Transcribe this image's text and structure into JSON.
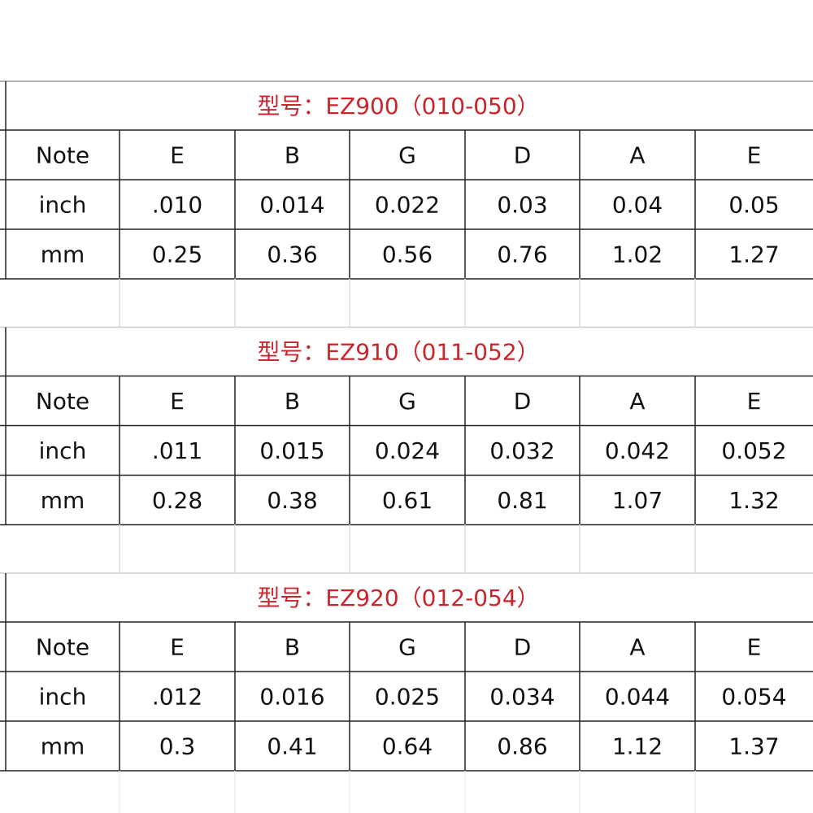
{
  "tables": [
    {
      "title": "型号：EZ900（010-050）",
      "rows": [
        [
          "Note",
          "E",
          "B",
          "G",
          "D",
          "A",
          "E"
        ],
        [
          "inch",
          ".010",
          "0.014",
          "0.022",
          "0.03",
          "0.04",
          "0.05"
        ],
        [
          "mm",
          "0.25",
          "0.36",
          "0.56",
          "0.76",
          "1.02",
          "1.27"
        ]
      ]
    },
    {
      "title": "型号：EZ910（011-052）",
      "rows": [
        [
          "Note",
          "E",
          "B",
          "G",
          "D",
          "A",
          "E"
        ],
        [
          "inch",
          ".011",
          "0.015",
          "0.024",
          "0.032",
          "0.042",
          "0.052"
        ],
        [
          "mm",
          "0.28",
          "0.38",
          "0.61",
          "0.81",
          "1.07",
          "1.32"
        ]
      ]
    },
    {
      "title": "型号：EZ920（012-054）",
      "rows": [
        [
          "Note",
          "E",
          "B",
          "G",
          "D",
          "A",
          "E"
        ],
        [
          "inch",
          ".012",
          "0.016",
          "0.025",
          "0.034",
          "0.044",
          "0.054"
        ],
        [
          "mm",
          "0.3",
          "0.41",
          "0.64",
          "0.86",
          "1.12",
          "1.37"
        ]
      ]
    }
  ]
}
